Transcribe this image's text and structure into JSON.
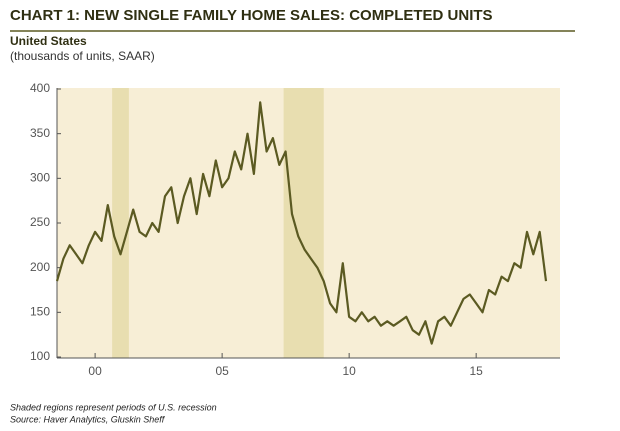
{
  "chart_data": {
    "type": "line",
    "title": "CHART 1: NEW SINGLE FAMILY HOME SALES: COMPLETED UNITS",
    "subtitle": "United States",
    "units_label": "(thousands of units, SAAR)",
    "notes": [
      "Shaded regions represent periods of U.S. recession",
      "Source: Haver Analytics, Gluskin Sheff"
    ],
    "x": [
      1999.0,
      1999.25,
      1999.5,
      1999.75,
      2000.0,
      2000.25,
      2000.5,
      2000.75,
      2001.0,
      2001.25,
      2001.5,
      2001.75,
      2002.0,
      2002.25,
      2002.5,
      2002.75,
      2003.0,
      2003.25,
      2003.5,
      2003.75,
      2004.0,
      2004.25,
      2004.5,
      2004.75,
      2005.0,
      2005.25,
      2005.5,
      2005.75,
      2006.0,
      2006.25,
      2006.5,
      2006.75,
      2007.0,
      2007.25,
      2007.5,
      2007.75,
      2008.0,
      2008.25,
      2008.5,
      2008.75,
      2009.0,
      2009.25,
      2009.5,
      2009.75,
      2010.0,
      2010.25,
      2010.5,
      2010.75,
      2011.0,
      2011.25,
      2011.5,
      2011.75,
      2012.0,
      2012.25,
      2012.5,
      2012.75,
      2013.0,
      2013.25,
      2013.5,
      2013.75,
      2014.0,
      2014.25,
      2014.5,
      2014.75,
      2015.0,
      2015.25,
      2015.5,
      2015.75,
      2016.0,
      2016.25,
      2016.5,
      2016.75,
      2017.0,
      2017.25,
      2017.5,
      2017.75,
      2018.0,
      2018.25
    ],
    "values": [
      185,
      210,
      225,
      215,
      205,
      225,
      240,
      230,
      270,
      235,
      215,
      240,
      265,
      240,
      235,
      250,
      240,
      280,
      290,
      250,
      280,
      300,
      260,
      305,
      280,
      320,
      290,
      300,
      330,
      310,
      350,
      305,
      385,
      330,
      345,
      315,
      330,
      260,
      235,
      220,
      210,
      200,
      185,
      160,
      150,
      205,
      145,
      140,
      150,
      140,
      145,
      135,
      140,
      135,
      140,
      145,
      130,
      125,
      140,
      115,
      140,
      145,
      135,
      150,
      165,
      170,
      160,
      150,
      175,
      170,
      190,
      185,
      205,
      200,
      240,
      215,
      240,
      185
    ],
    "color": "#5b5a22",
    "recessions": [
      [
        2001.17,
        2001.83
      ],
      [
        2007.92,
        2009.5
      ]
    ],
    "recession_color": "#e8deb0",
    "xlim": [
      1999.0,
      2018.8
    ],
    "xticks": [
      {
        "value": 2000.5,
        "label": "00"
      },
      {
        "value": 2005.5,
        "label": "05"
      },
      {
        "value": 2010.5,
        "label": "10"
      },
      {
        "value": 2015.5,
        "label": "15"
      }
    ],
    "ylim": [
      100,
      400
    ],
    "yticks": [
      100,
      150,
      200,
      250,
      300,
      350,
      400
    ],
    "grid": false
  }
}
